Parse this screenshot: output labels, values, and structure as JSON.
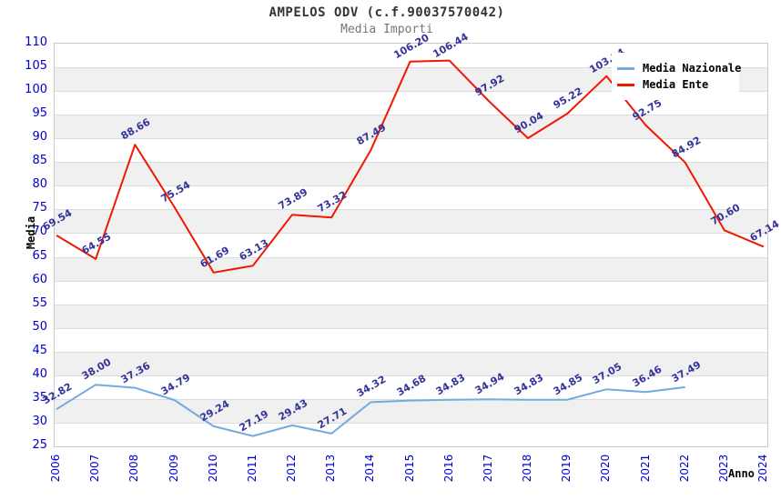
{
  "chart_data": {
    "type": "line",
    "title": "AMPELOS ODV (c.f.90037570042)",
    "subtitle": "Media Importi",
    "xlabel": "Anno",
    "ylabel": "Media",
    "ylim": [
      25,
      110
    ],
    "ytick_step": 5,
    "grid": "horizontal",
    "legend_position": "top-right",
    "categories": [
      "2006",
      "2007",
      "2008",
      "2009",
      "2010",
      "2011",
      "2012",
      "2013",
      "2014",
      "2015",
      "2016",
      "2017",
      "2018",
      "2019",
      "2020",
      "2021",
      "2022",
      "2023",
      "2024"
    ],
    "series": [
      {
        "name": "Media Nazionale",
        "color": "#74aadd",
        "values": [
          32.82,
          38.0,
          37.36,
          34.79,
          29.24,
          27.19,
          29.43,
          27.71,
          34.32,
          34.68,
          34.83,
          34.94,
          34.83,
          34.85,
          37.05,
          36.46,
          37.49,
          null,
          null
        ]
      },
      {
        "name": "Media Ente",
        "color": "#f01800",
        "values": [
          69.54,
          64.55,
          88.66,
          75.54,
          61.69,
          63.13,
          73.89,
          73.32,
          87.49,
          106.2,
          106.44,
          97.92,
          90.04,
          95.22,
          103.14,
          92.75,
          84.92,
          70.6,
          67.14
        ]
      }
    ],
    "colors": {
      "tick_label": "#0000cd",
      "data_label": "#333399",
      "band": "#f0f0f0",
      "gridline": "#dcdcdc",
      "plot_border": "#c9c9c9",
      "title": "#333333",
      "subtitle": "#757575"
    }
  }
}
